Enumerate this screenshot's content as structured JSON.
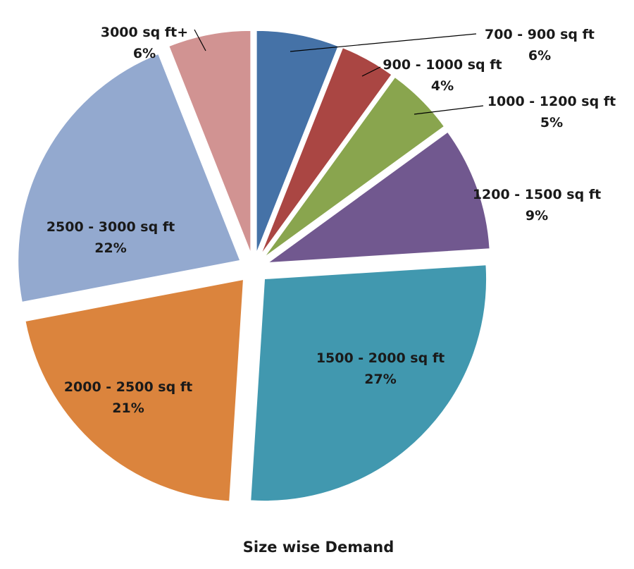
{
  "chart_data": {
    "type": "pie",
    "title": "Size wise Demand",
    "categories": [
      "700 - 900 sq ft",
      "900 - 1000 sq ft",
      "1000 - 1200 sq ft",
      "1200 - 1500 sq ft",
      "1500 - 2000 sq ft",
      "2000 - 2500 sq ft",
      "2500 - 3000 sq ft",
      "3000 sq ft+"
    ],
    "values": [
      6,
      4,
      5,
      9,
      27,
      21,
      22,
      6
    ],
    "value_labels": [
      "6%",
      "4%",
      "5%",
      "9%",
      "27%",
      "21%",
      "22%",
      "6%"
    ],
    "colors": [
      "#4572a7",
      "#aa4643",
      "#89a54e",
      "#71588f",
      "#4198af",
      "#db843d",
      "#93a9cf",
      "#d19392"
    ],
    "legend": "none",
    "data_labels": "outside-or-inside with category and percent"
  }
}
